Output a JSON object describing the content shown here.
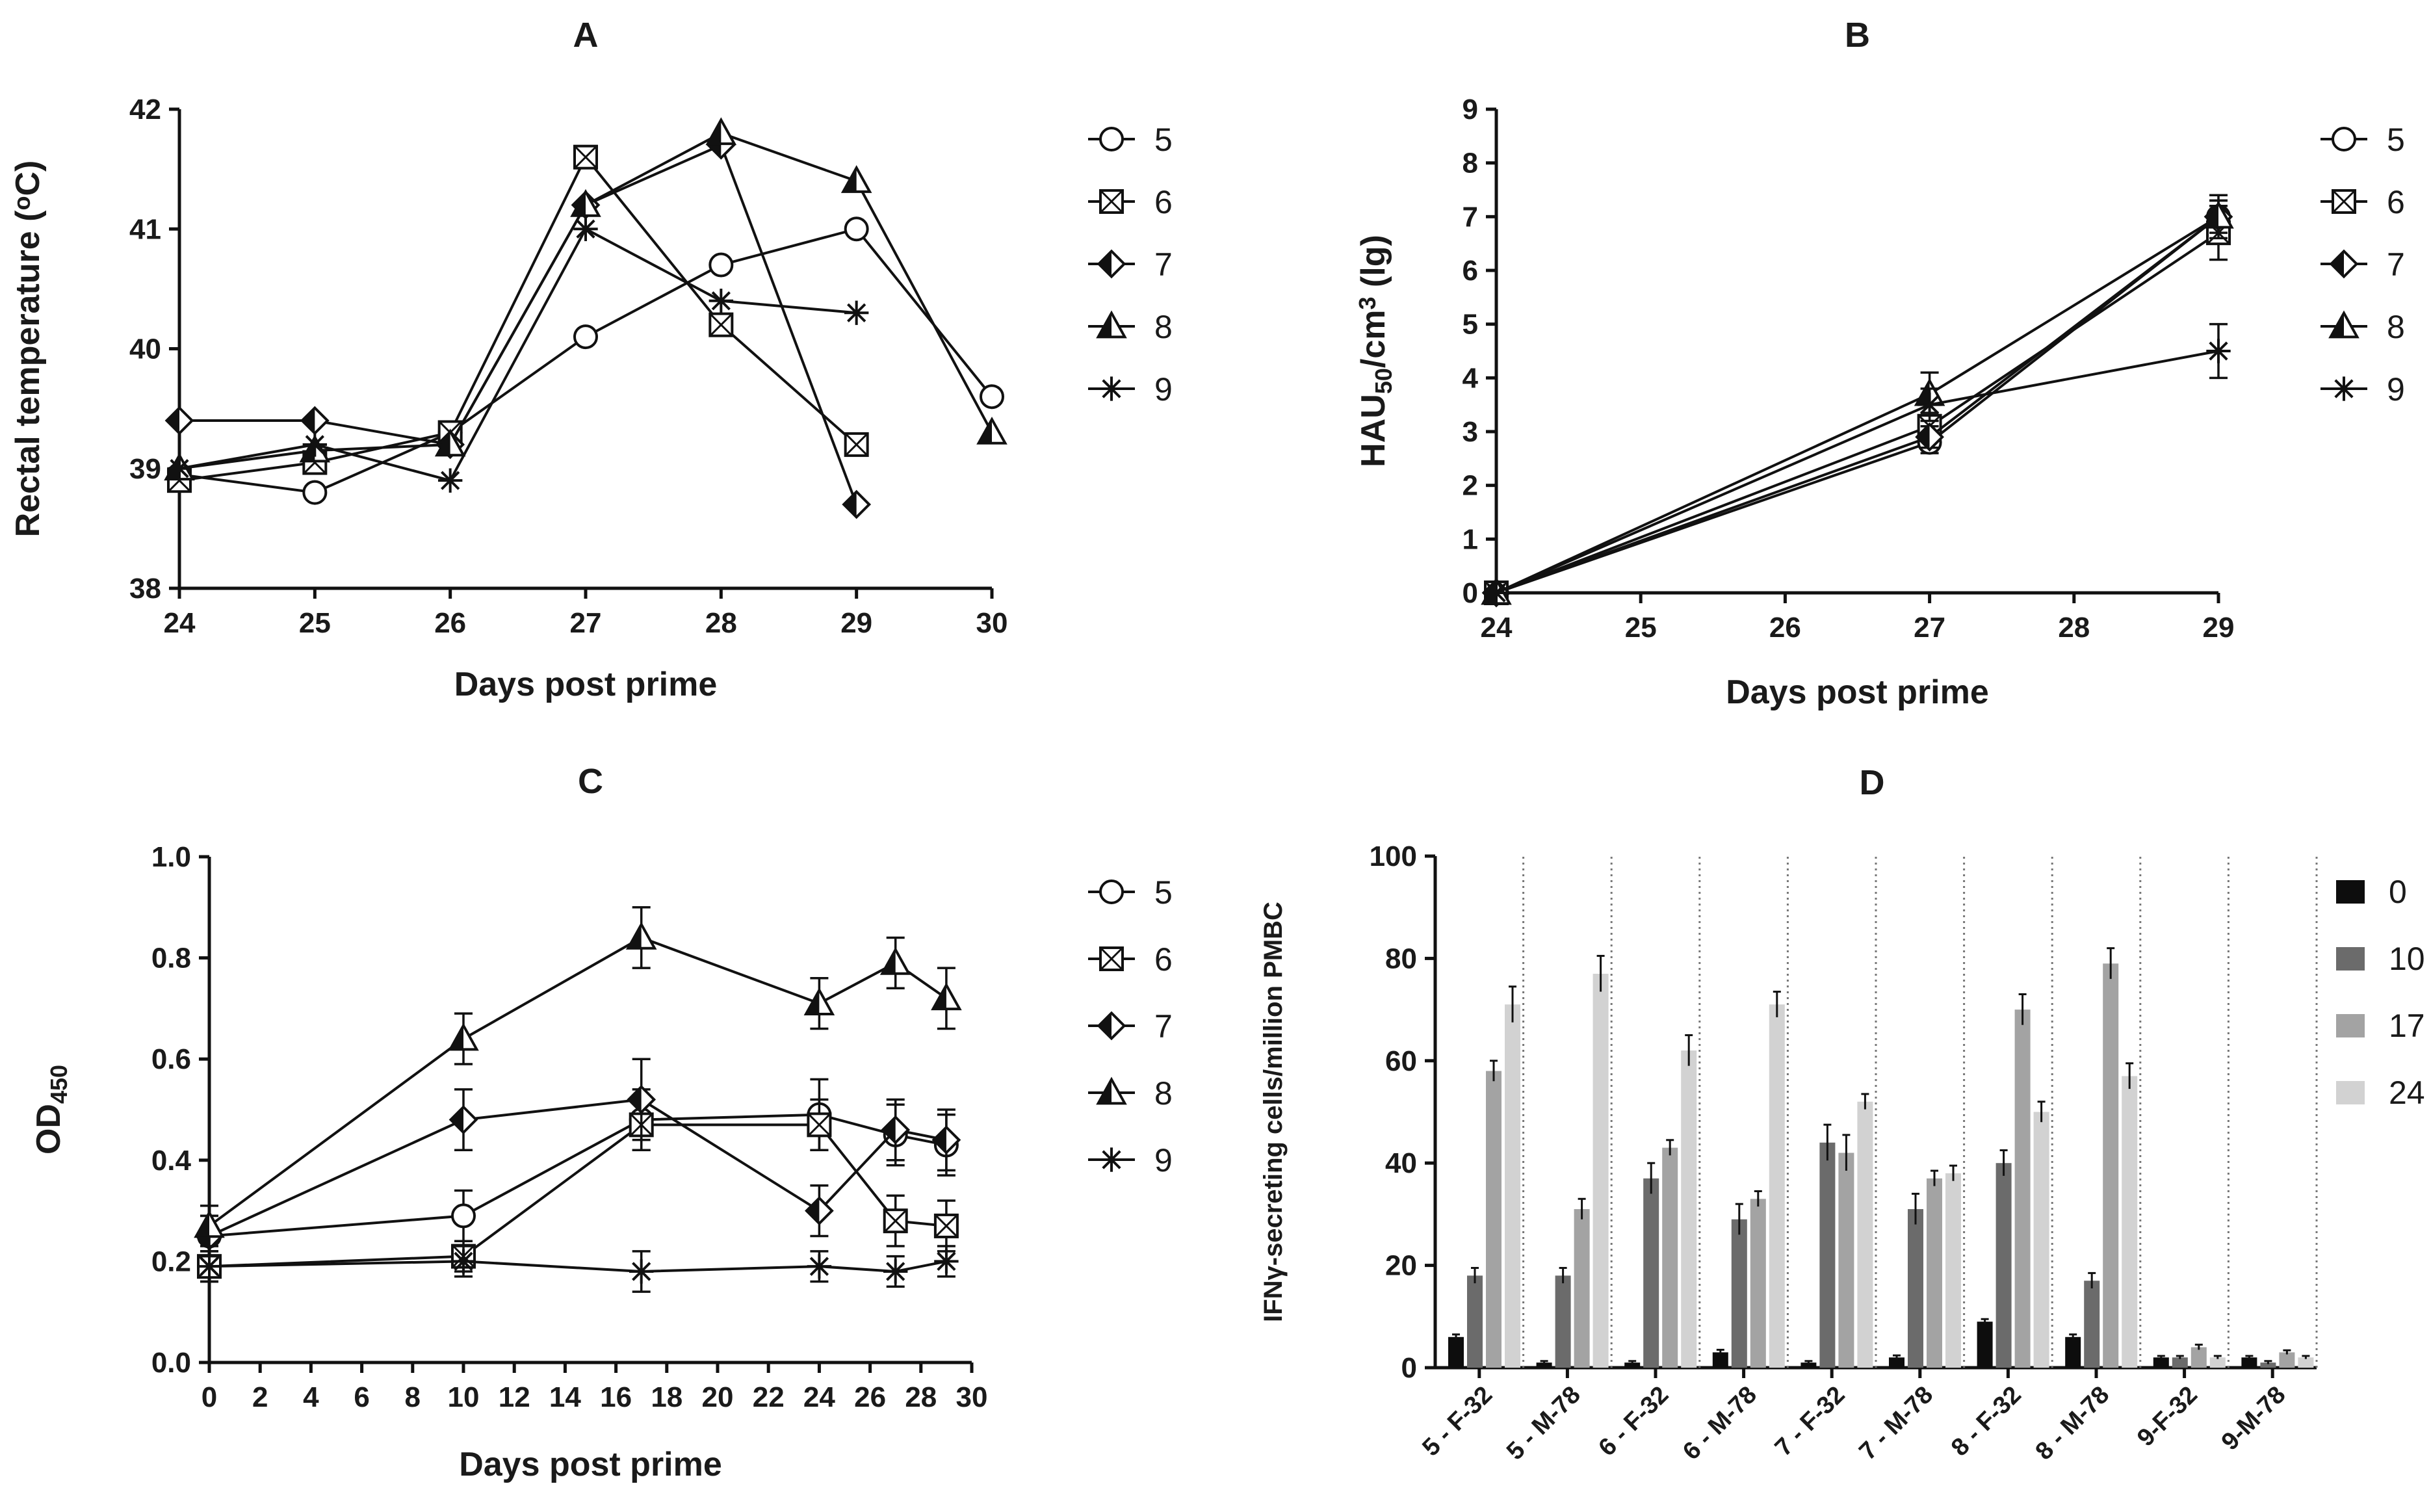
{
  "chart_data": [
    {
      "panel": "A",
      "type": "line",
      "title": "A",
      "xlabel": "Days post prime",
      "ylabel": "Rectal temperature (°C)",
      "ylabel_parts": [
        "Rectal temperature (",
        "o",
        "C)"
      ],
      "xlim": [
        24,
        30
      ],
      "ylim": [
        38,
        42
      ],
      "xticks": [
        24,
        25,
        26,
        27,
        28,
        29,
        30
      ],
      "yticks": [
        38,
        39,
        40,
        41,
        42
      ],
      "series": [
        {
          "name": "5",
          "marker": "circle",
          "x": [
            24,
            25,
            26,
            27,
            28,
            29,
            30
          ],
          "y": [
            38.95,
            38.8,
            39.3,
            40.1,
            40.7,
            41.0,
            39.6
          ]
        },
        {
          "name": "6",
          "marker": "square-x",
          "x": [
            24,
            25,
            26,
            27,
            28,
            29
          ],
          "y": [
            38.9,
            39.05,
            39.3,
            41.6,
            40.2,
            39.2
          ]
        },
        {
          "name": "7",
          "marker": "diamond",
          "x": [
            24,
            25,
            26,
            27,
            28,
            29
          ],
          "y": [
            39.4,
            39.4,
            39.2,
            41.2,
            41.7,
            38.7
          ]
        },
        {
          "name": "8",
          "marker": "triangle",
          "x": [
            24,
            25,
            26,
            27,
            28,
            29,
            30
          ],
          "y": [
            39.0,
            39.15,
            39.2,
            41.2,
            41.8,
            41.4,
            39.3
          ]
        },
        {
          "name": "9",
          "marker": "star",
          "x": [
            24,
            25,
            26,
            27,
            28,
            29
          ],
          "y": [
            39.0,
            39.2,
            38.9,
            41.0,
            40.4,
            40.3
          ]
        }
      ]
    },
    {
      "panel": "B",
      "type": "line",
      "title": "B",
      "xlabel": "Days post prime",
      "ylabel": "HAU50/cm3 (lg)",
      "ylabel_parts": [
        "HAU",
        "50",
        "/cm",
        "3",
        " (lg)"
      ],
      "xlim": [
        24,
        29
      ],
      "ylim": [
        0,
        9
      ],
      "xticks": [
        24,
        25,
        26,
        27,
        28,
        29
      ],
      "yticks": [
        0,
        1,
        2,
        3,
        4,
        5,
        6,
        7,
        8,
        9
      ],
      "series": [
        {
          "name": "5",
          "marker": "circle",
          "x": [
            24,
            27,
            29
          ],
          "y": [
            0,
            2.8,
            7.0
          ],
          "err": [
            0,
            0.2,
            0.3
          ]
        },
        {
          "name": "6",
          "marker": "square-x",
          "x": [
            24,
            27,
            29
          ],
          "y": [
            0,
            3.1,
            6.7
          ],
          "err": [
            0,
            0.25,
            0.5
          ]
        },
        {
          "name": "7",
          "marker": "diamond",
          "x": [
            24,
            27,
            29
          ],
          "y": [
            0,
            2.9,
            7.0
          ],
          "err": [
            0,
            0.2,
            0.3
          ]
        },
        {
          "name": "8",
          "marker": "triangle",
          "x": [
            24,
            27,
            29
          ],
          "y": [
            0,
            3.7,
            7.0
          ],
          "err": [
            0,
            0.4,
            0.4
          ]
        },
        {
          "name": "9",
          "marker": "star",
          "x": [
            24,
            27,
            29
          ],
          "y": [
            0,
            3.5,
            4.5
          ],
          "err": [
            0,
            0.3,
            0.5
          ]
        }
      ]
    },
    {
      "panel": "C",
      "type": "line",
      "title": "C",
      "xlabel": "Days post prime",
      "ylabel": "OD450",
      "ylabel_parts": [
        "OD",
        "450"
      ],
      "xlim": [
        0,
        30
      ],
      "ylim": [
        0.0,
        1.0
      ],
      "xticks": [
        0,
        2,
        4,
        6,
        8,
        10,
        12,
        14,
        16,
        18,
        20,
        22,
        24,
        26,
        28,
        30
      ],
      "yticks": [
        "0.0",
        "0.2",
        "0.4",
        "0.6",
        "0.8",
        "1.0"
      ],
      "series": [
        {
          "name": "5",
          "marker": "circle",
          "x": [
            0,
            10,
            17,
            24,
            27,
            29
          ],
          "y": [
            0.25,
            0.29,
            0.48,
            0.49,
            0.45,
            0.43
          ],
          "err": [
            0.04,
            0.05,
            0.06,
            0.07,
            0.06,
            0.06
          ]
        },
        {
          "name": "6",
          "marker": "square-x",
          "x": [
            0,
            10,
            17,
            24,
            27,
            29
          ],
          "y": [
            0.19,
            0.21,
            0.47,
            0.47,
            0.28,
            0.27
          ],
          "err": [
            0.03,
            0.03,
            0.05,
            0.05,
            0.05,
            0.05
          ]
        },
        {
          "name": "7",
          "marker": "diamond",
          "x": [
            0,
            10,
            17,
            24,
            27,
            29
          ],
          "y": [
            0.25,
            0.48,
            0.52,
            0.3,
            0.46,
            0.44
          ],
          "err": [
            0.04,
            0.06,
            0.08,
            0.05,
            0.06,
            0.06
          ]
        },
        {
          "name": "8",
          "marker": "triangle",
          "x": [
            0,
            10,
            17,
            24,
            27,
            29
          ],
          "y": [
            0.27,
            0.64,
            0.84,
            0.71,
            0.79,
            0.72
          ],
          "err": [
            0.04,
            0.05,
            0.06,
            0.05,
            0.05,
            0.06
          ]
        },
        {
          "name": "9",
          "marker": "star",
          "x": [
            0,
            10,
            17,
            24,
            27,
            29
          ],
          "y": [
            0.19,
            0.2,
            0.18,
            0.19,
            0.18,
            0.2
          ],
          "err": [
            0.03,
            0.03,
            0.04,
            0.03,
            0.03,
            0.03
          ]
        }
      ]
    },
    {
      "panel": "D",
      "type": "bar",
      "title": "D",
      "xlabel": "",
      "ylabel": "IFNγ-secreting cells/million PMBC",
      "ylim": [
        0,
        100
      ],
      "yticks": [
        0,
        20,
        40,
        60,
        80,
        100
      ],
      "categories": [
        "5 - F-32",
        "5 - M-78",
        "6 - F-32",
        "6 - M-78",
        "7 - F-32",
        "7 - M-78",
        "8 - F-32",
        "8 - M-78",
        "9-F-32",
        "9-M-78"
      ],
      "series": [
        {
          "name": "0",
          "color": "#0d0d0d",
          "values": [
            6,
            1,
            1,
            3,
            1,
            2,
            9,
            6,
            2,
            2
          ],
          "err": [
            0.5,
            0.3,
            0.3,
            0.5,
            0.3,
            0.4,
            0.5,
            0.5,
            0.3,
            0.3
          ]
        },
        {
          "name": "10",
          "color": "#6b6b6b",
          "values": [
            18,
            18,
            37,
            29,
            44,
            31,
            40,
            17,
            2,
            1
          ],
          "err": [
            1.5,
            1.5,
            3,
            3,
            3.5,
            3,
            2.5,
            1.5,
            0.3,
            0.3
          ]
        },
        {
          "name": "17",
          "color": "#a3a3a3",
          "values": [
            58,
            31,
            43,
            33,
            42,
            37,
            70,
            79,
            4,
            3
          ],
          "err": [
            2,
            2,
            1.5,
            1.5,
            3.5,
            1.5,
            3,
            3,
            0.5,
            0.4
          ]
        },
        {
          "name": "24",
          "color": "#d2d2d2",
          "values": [
            71,
            77,
            62,
            71,
            52,
            38,
            50,
            57,
            2,
            2
          ],
          "err": [
            3.5,
            3.5,
            3,
            2.5,
            1.5,
            1.5,
            2,
            2.5,
            0.3,
            0.3
          ]
        }
      ]
    }
  ]
}
